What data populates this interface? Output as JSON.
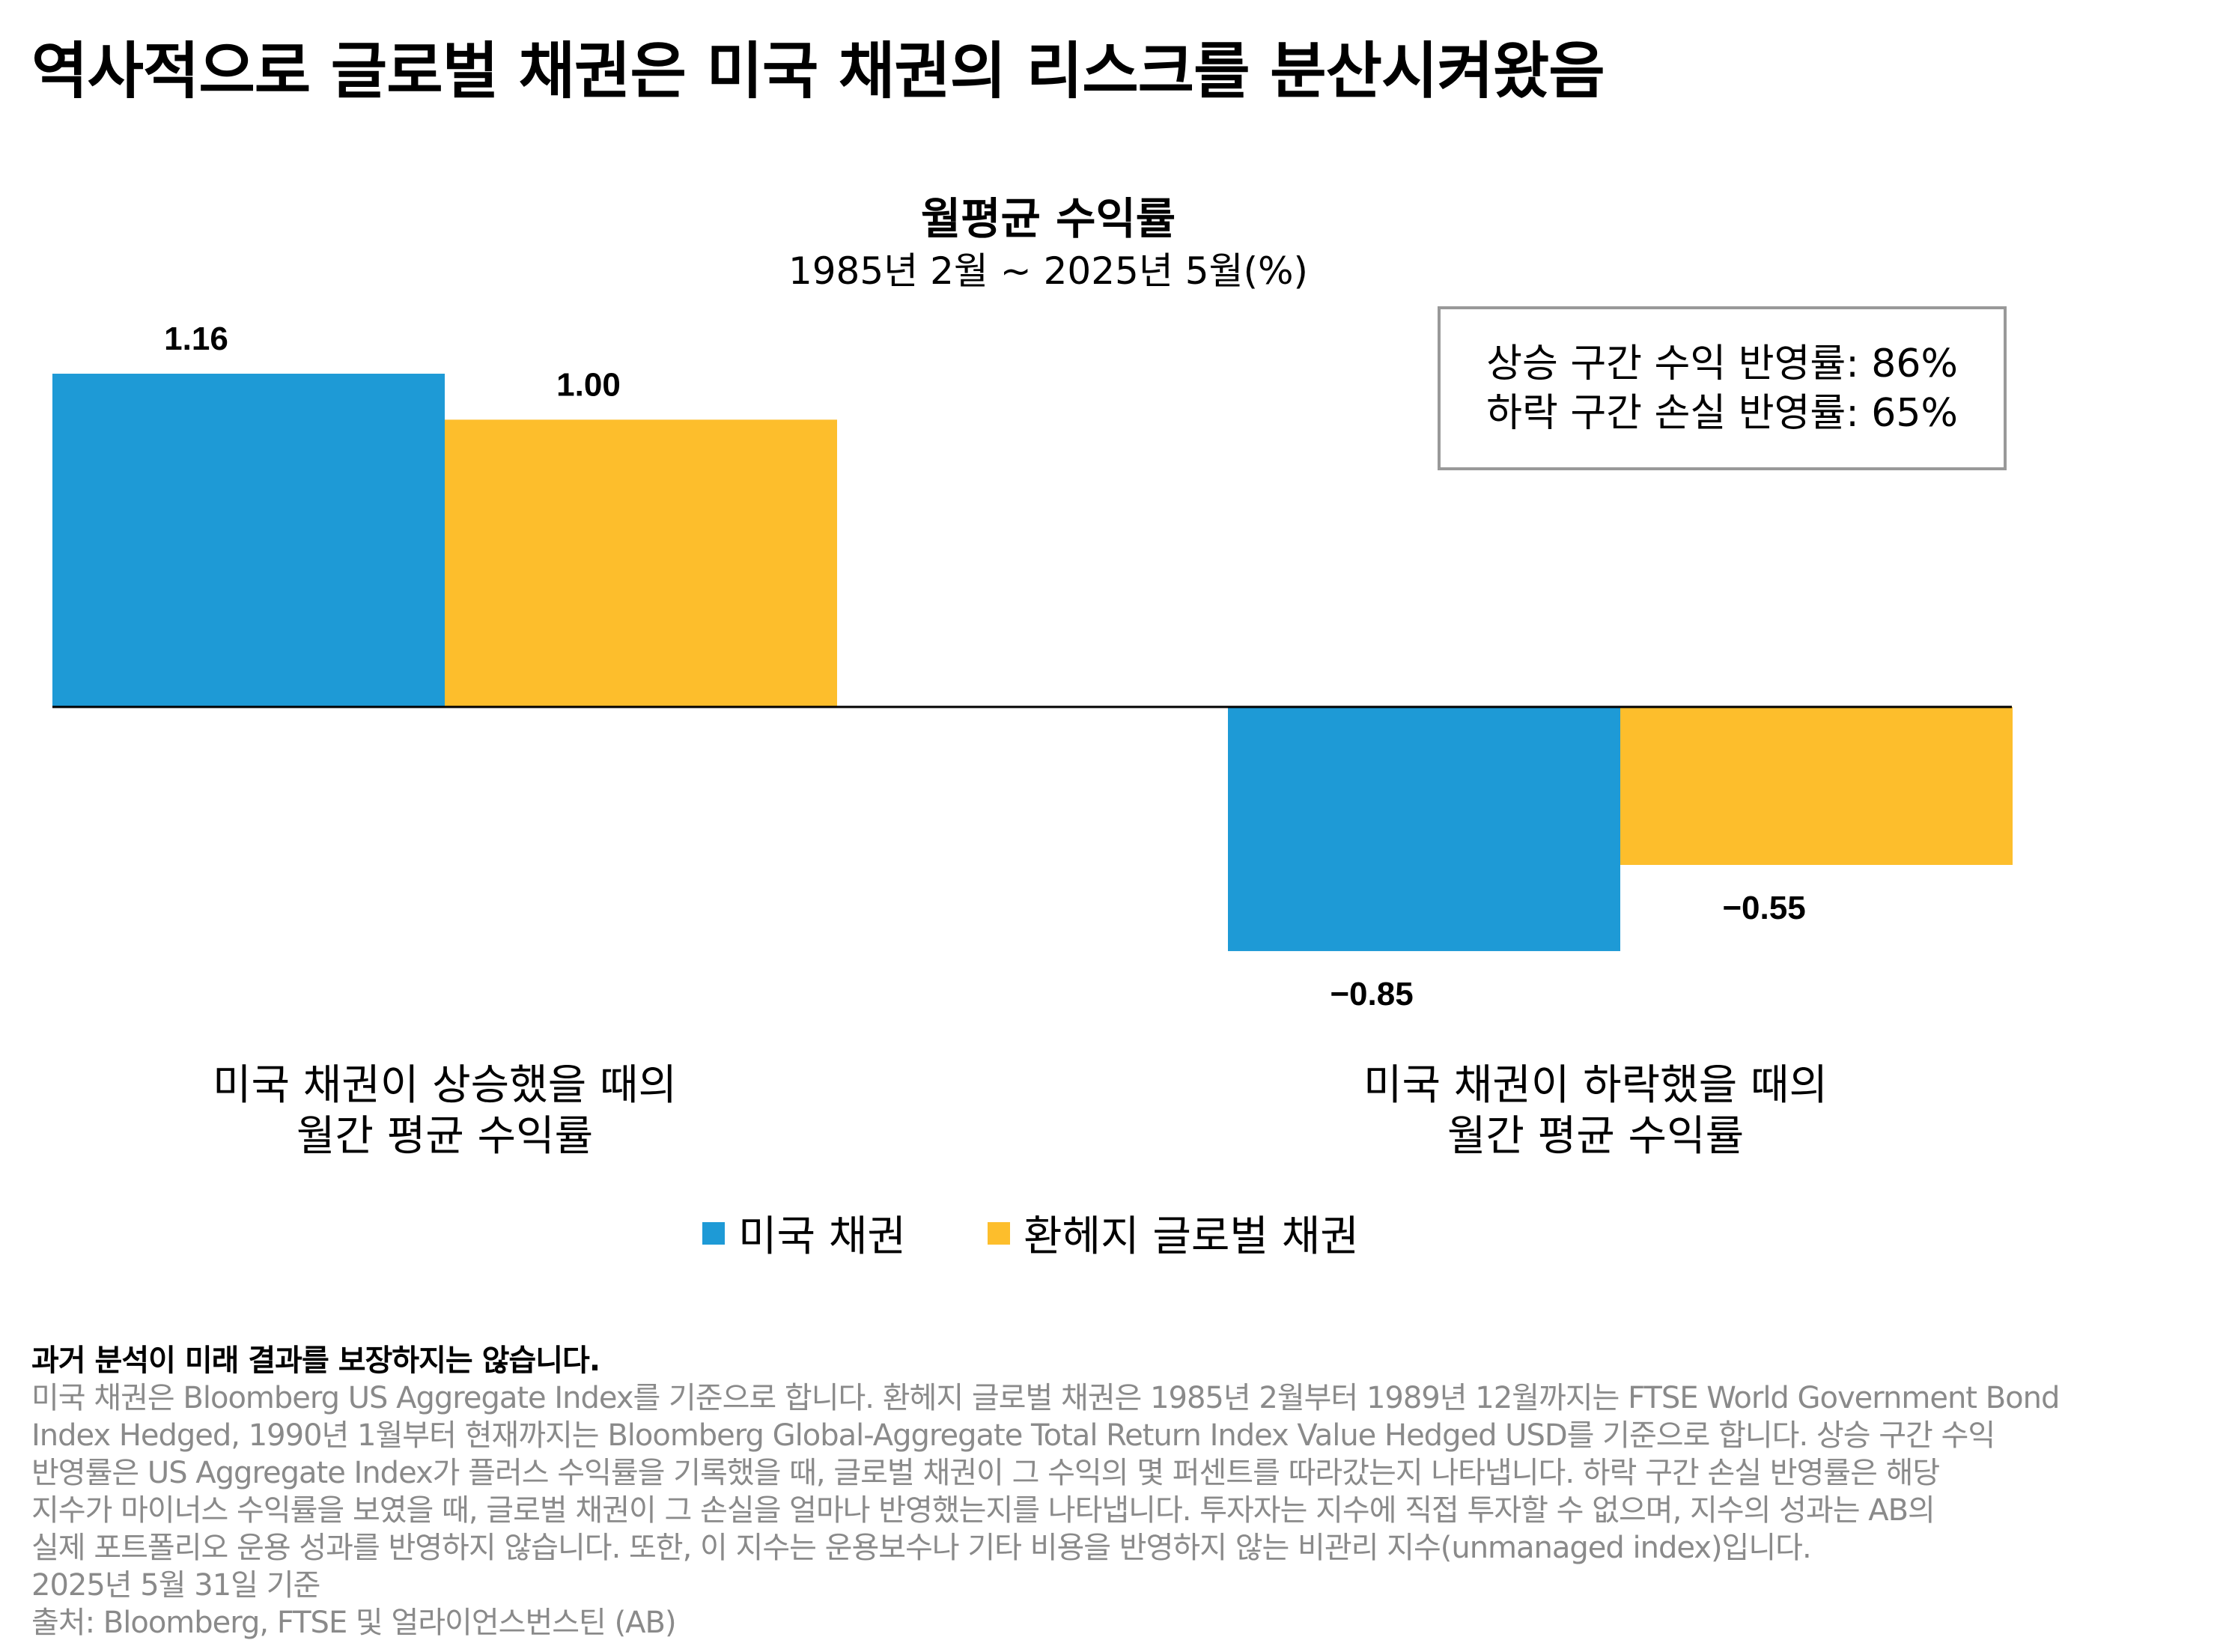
{
  "header": {
    "title": "역사적으로 글로벌 채권은 미국 채권의 리스크를 분산시켜왔음"
  },
  "annotation": {
    "line1": "상승 구간 수익 반영률: 86%",
    "line2": "하락 구간 손실 반영률: 65%"
  },
  "chart_data": {
    "type": "bar",
    "title": "월평균 수익률",
    "subtitle": "1985년 2월 ~ 2025년 5월(%)",
    "categories": [
      {
        "line1": "미국 채권이 상승했을 때의",
        "line2": "월간 평균 수익률"
      },
      {
        "line1": "미국 채권이 하락했을 때의",
        "line2": "월간 평균 수익률"
      }
    ],
    "series": [
      {
        "name": "미국 채권",
        "color": "#1E9AD6",
        "values": [
          1.16,
          -0.85
        ],
        "labels": [
          "1.16",
          "−0.85"
        ]
      },
      {
        "name": "환헤지 글로벌 채권",
        "color": "#FDBE2C",
        "values": [
          1.0,
          -0.55
        ],
        "labels": [
          "1.00",
          "−0.55"
        ]
      }
    ],
    "ylim": [
      -0.85,
      1.16
    ],
    "grid": false,
    "legend_placement": "bottom-center",
    "axis_line_color": "#000000"
  },
  "footnotes": {
    "bold": "과거 분석이 미래 결과를 보장하지는 않습니다.",
    "lines": [
      "미국 채권은 Bloomberg US Aggregate Index를 기준으로 합니다. 환헤지 글로벌 채권은 1985년 2월부터 1989년 12월까지는 FTSE World Government Bond",
      "Index Hedged, 1990년 1월부터 현재까지는 Bloomberg Global-Aggregate Total Return Index Value Hedged USD를 기준으로 합니다. 상승 구간 수익",
      "반영률은 US Aggregate Index가 플러스 수익률을 기록했을 때, 글로벌 채권이 그 수익의 몇 퍼센트를 따라갔는지 나타냅니다. 하락 구간 손실 반영률은 해당",
      "지수가 마이너스 수익률을 보였을 때, 글로벌 채권이 그 손실을 얼마나 반영했는지를 나타냅니다. 투자자는 지수에 직접 투자할 수 없으며, 지수의 성과는 AB의",
      "실제 포트폴리오 운용 성과를 반영하지 않습니다. 또한, 이 지수는 운용보수나 기타 비용을 반영하지 않는 비관리 지수(unmanaged index)입니다.",
      "2025년 5월 31일 기준",
      "출처: Bloomberg, FTSE 및 얼라이언스번스틴 (AB)"
    ]
  }
}
